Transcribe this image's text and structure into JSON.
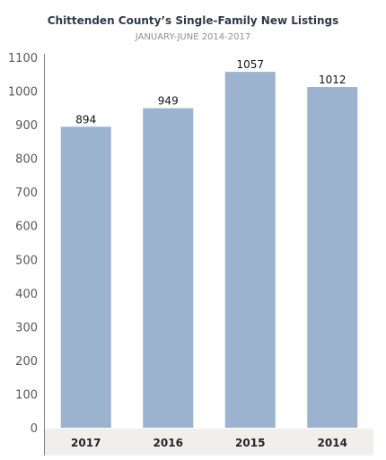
{
  "chart_data": {
    "type": "bar",
    "title": "Chittenden County’s Single-Family New Listings",
    "subtitle": "JANUARY-JUNE 2014-2017",
    "categories": [
      "2017",
      "2016",
      "2015",
      "2014"
    ],
    "values": [
      894,
      949,
      1057,
      1012
    ],
    "data_labels": [
      "894",
      "949",
      "1057",
      "1012"
    ],
    "ylim": [
      0,
      1100
    ],
    "yticks": [
      0,
      100,
      200,
      300,
      400,
      500,
      600,
      700,
      800,
      900,
      1000,
      1100
    ],
    "grid": false,
    "legend": "none",
    "bar_color": "#9bb3cf",
    "axis_band_color": "#f0efec"
  }
}
